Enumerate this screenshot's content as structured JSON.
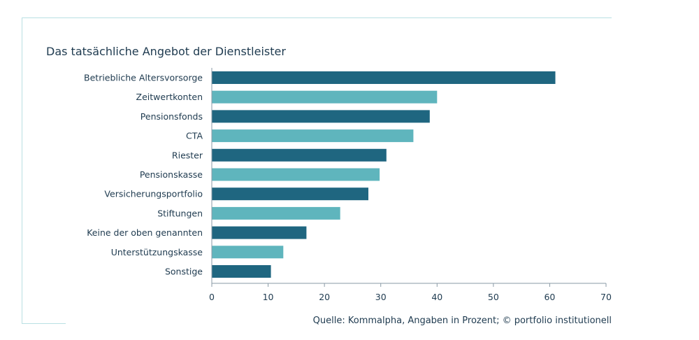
{
  "chart_data": {
    "type": "bar",
    "orientation": "horizontal",
    "title": "Das tatsächliche Angebot der Dienstleister",
    "categories": [
      "Betriebliche Altersvorsorge",
      "Zeitwertkonten",
      "Pensionsfonds",
      "CTA",
      "Riester",
      "Pensionskasse",
      "Versicherungsportfolio",
      "Stiftungen",
      "Keine der oben genannten",
      "Unterstützungskasse",
      "Sonstige"
    ],
    "values": [
      61,
      40,
      38.7,
      35.8,
      31,
      29.8,
      27.8,
      22.8,
      16.8,
      12.7,
      10.5
    ],
    "xlim": [
      0,
      70
    ],
    "xticks": [
      0,
      10,
      20,
      30,
      40,
      50,
      60,
      70
    ],
    "colors": [
      "#1f6680",
      "#5fb5bd"
    ],
    "grid": false,
    "source": "Quelle: Kommalpha, Angaben in Prozent; © portfolio institutionell"
  }
}
